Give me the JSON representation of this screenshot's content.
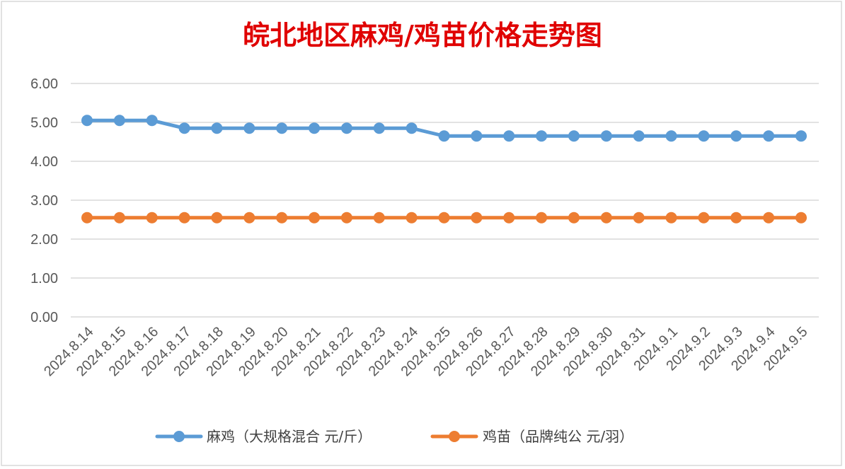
{
  "chart_data": {
    "type": "line",
    "title": "皖北地区麻鸡/鸡苗价格走势图",
    "xlabel": "",
    "ylabel": "",
    "categories": [
      "2024.8.14",
      "2024.8.15",
      "2024.8.16",
      "2024.8.17",
      "2024.8.18",
      "2024.8.19",
      "2024.8.20",
      "2024.8.21",
      "2024.8.22",
      "2024.8.23",
      "2024.8.24",
      "2024.8.25",
      "2024.8.26",
      "2024.8.27",
      "2024.8.28",
      "2024.8.29",
      "2024.8.30",
      "2024.8.31",
      "2024.9.1",
      "2024.9.2",
      "2024.9.3",
      "2024.9.4",
      "2024.9.5"
    ],
    "series": [
      {
        "name": "麻鸡（大规格混合 元/斤）",
        "color": "#5b9bd5",
        "values": [
          5.05,
          5.05,
          5.05,
          4.85,
          4.85,
          4.85,
          4.85,
          4.85,
          4.85,
          4.85,
          4.85,
          4.65,
          4.65,
          4.65,
          4.65,
          4.65,
          4.65,
          4.65,
          4.65,
          4.65,
          4.65,
          4.65,
          4.65
        ]
      },
      {
        "name": "鸡苗（品牌纯公 元/羽）",
        "color": "#ed7d31",
        "values": [
          2.55,
          2.55,
          2.55,
          2.55,
          2.55,
          2.55,
          2.55,
          2.55,
          2.55,
          2.55,
          2.55,
          2.55,
          2.55,
          2.55,
          2.55,
          2.55,
          2.55,
          2.55,
          2.55,
          2.55,
          2.55,
          2.55,
          2.55
        ]
      }
    ],
    "ylim": [
      0,
      6
    ],
    "yticks": [
      "0.00",
      "1.00",
      "2.00",
      "3.00",
      "4.00",
      "5.00",
      "6.00"
    ],
    "grid": true,
    "legend": "bottom",
    "colors": {
      "grid": "#d9d9d9",
      "axis_text": "#595959",
      "title": "#e00000",
      "border": "#d9d9d9"
    }
  }
}
